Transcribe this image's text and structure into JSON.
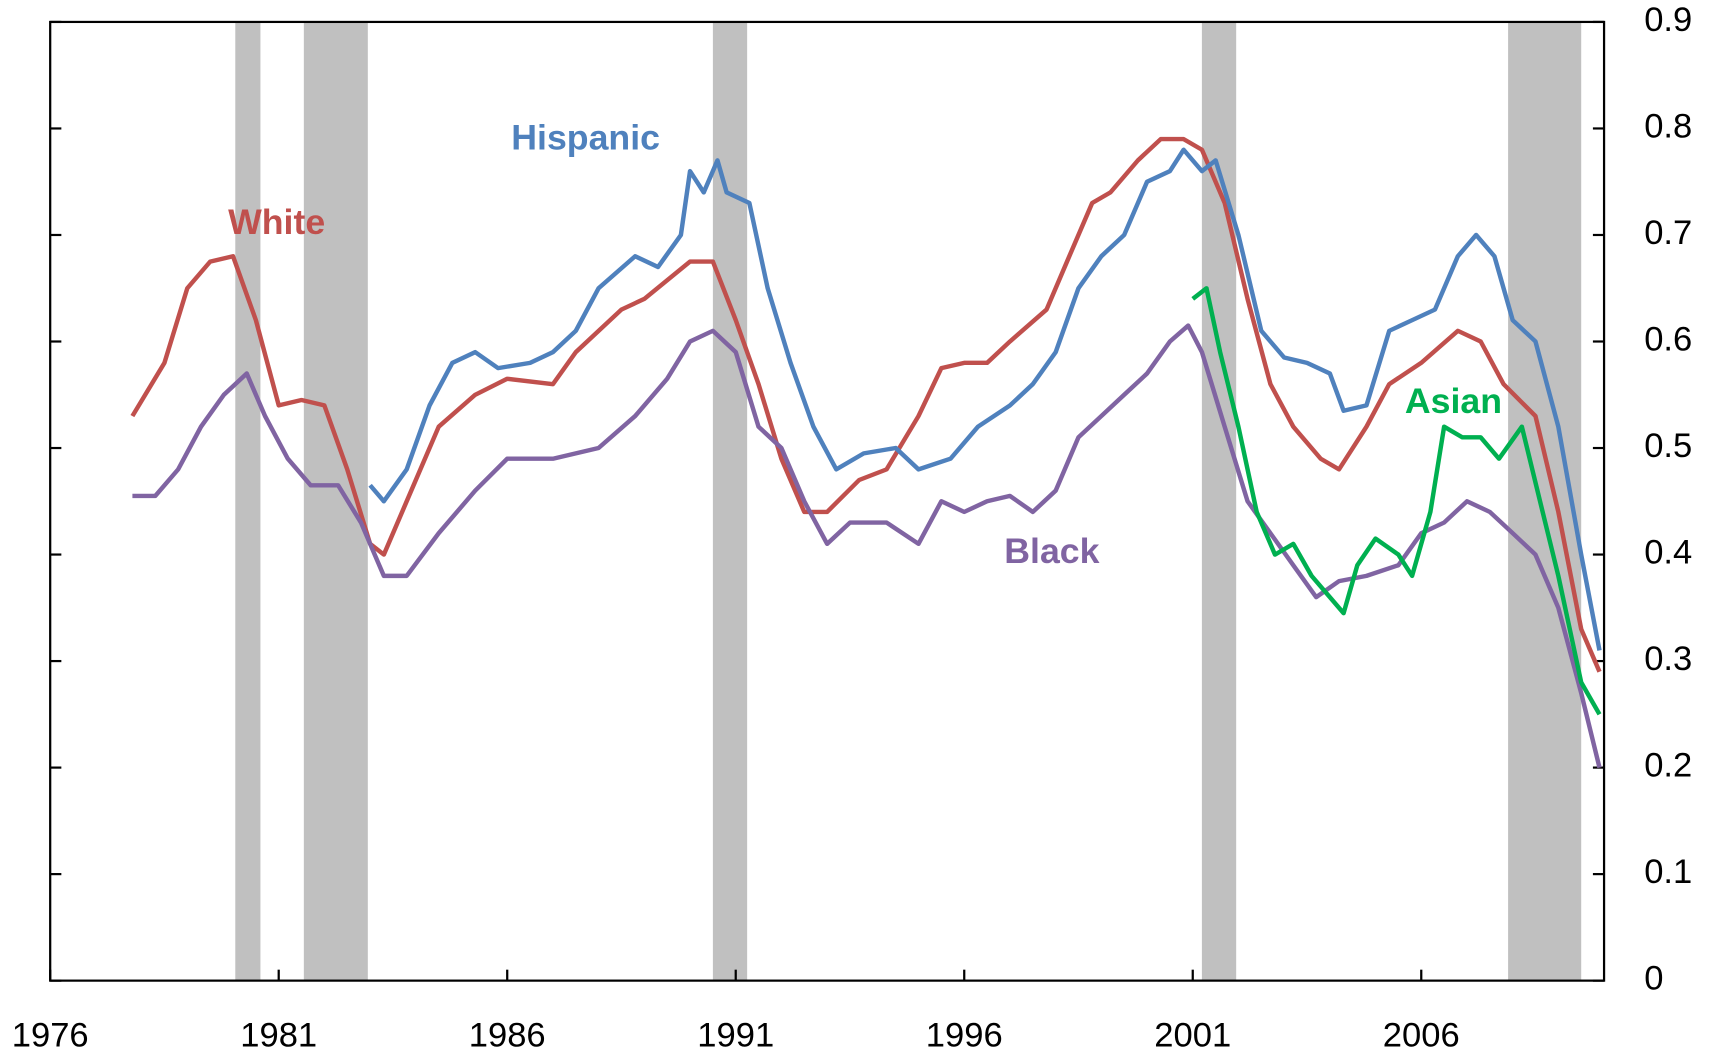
{
  "chart_data": {
    "type": "line",
    "xlim": [
      1976,
      2010
    ],
    "xticks": [
      1976,
      1981,
      1986,
      1991,
      1996,
      2001,
      2006
    ],
    "ylim": [
      0,
      0.9
    ],
    "yticks": [
      0,
      0.1,
      0.2,
      0.3,
      0.4,
      0.5,
      0.6,
      0.7,
      0.8,
      0.9
    ],
    "recessions": [
      [
        1980.05,
        1980.6
      ],
      [
        1981.55,
        1982.95
      ],
      [
        1990.5,
        1991.25
      ],
      [
        2001.2,
        2001.95
      ],
      [
        2007.9,
        2009.5
      ]
    ],
    "series": [
      {
        "name": "White",
        "color": "#c0504d",
        "x": [
          1977.8,
          1978.5,
          1979.0,
          1979.5,
          1980.0,
          1980.5,
          1981.0,
          1981.5,
          1982.0,
          1982.5,
          1983.0,
          1983.3,
          1983.8,
          1984.5,
          1985.3,
          1986.0,
          1987.0,
          1987.5,
          1988.5,
          1989.0,
          1990.0,
          1990.5,
          1991.0,
          1991.5,
          1992.0,
          1992.5,
          1993.0,
          1993.7,
          1994.3,
          1995.0,
          1995.5,
          1996.0,
          1996.5,
          1997.0,
          1997.8,
          1998.3,
          1998.8,
          1999.2,
          1999.8,
          2000.3,
          2000.8,
          2001.2,
          2001.7,
          2002.2,
          2002.7,
          2003.2,
          2003.8,
          2004.2,
          2004.8,
          2005.3,
          2006.0,
          2006.8,
          2007.3,
          2007.8,
          2008.5,
          2009.0,
          2009.5,
          2009.9
        ],
        "values": [
          0.53,
          0.58,
          0.65,
          0.675,
          0.68,
          0.62,
          0.54,
          0.545,
          0.54,
          0.48,
          0.41,
          0.4,
          0.45,
          0.52,
          0.55,
          0.565,
          0.56,
          0.59,
          0.63,
          0.64,
          0.675,
          0.675,
          0.62,
          0.56,
          0.49,
          0.44,
          0.44,
          0.47,
          0.48,
          0.53,
          0.575,
          0.58,
          0.58,
          0.6,
          0.63,
          0.68,
          0.73,
          0.74,
          0.77,
          0.79,
          0.79,
          0.78,
          0.73,
          0.64,
          0.56,
          0.52,
          0.49,
          0.48,
          0.52,
          0.56,
          0.58,
          0.61,
          0.6,
          0.56,
          0.53,
          0.44,
          0.33,
          0.29
        ]
      },
      {
        "name": "Hispanic",
        "color": "#4f81bd",
        "x": [
          1983.0,
          1983.3,
          1983.8,
          1984.3,
          1984.8,
          1985.3,
          1985.8,
          1986.5,
          1987.0,
          1987.5,
          1988.0,
          1988.8,
          1989.3,
          1989.8,
          1990.0,
          1990.3,
          1990.6,
          1990.8,
          1991.3,
          1991.7,
          1992.2,
          1992.7,
          1993.2,
          1993.8,
          1994.5,
          1995.0,
          1995.7,
          1996.3,
          1997.0,
          1997.5,
          1998.0,
          1998.5,
          1999.0,
          1999.5,
          2000.0,
          2000.5,
          2000.8,
          2001.2,
          2001.5,
          2002.0,
          2002.5,
          2003.0,
          2003.5,
          2004.0,
          2004.3,
          2004.8,
          2005.3,
          2005.8,
          2006.3,
          2006.8,
          2007.2,
          2007.6,
          2008.0,
          2008.5,
          2009.0,
          2009.5,
          2009.9
        ],
        "values": [
          0.465,
          0.45,
          0.48,
          0.54,
          0.58,
          0.59,
          0.575,
          0.58,
          0.59,
          0.61,
          0.65,
          0.68,
          0.67,
          0.7,
          0.76,
          0.74,
          0.77,
          0.74,
          0.73,
          0.65,
          0.58,
          0.52,
          0.48,
          0.495,
          0.5,
          0.48,
          0.49,
          0.52,
          0.54,
          0.56,
          0.59,
          0.65,
          0.68,
          0.7,
          0.75,
          0.76,
          0.78,
          0.76,
          0.77,
          0.7,
          0.61,
          0.585,
          0.58,
          0.57,
          0.535,
          0.54,
          0.61,
          0.62,
          0.63,
          0.68,
          0.7,
          0.68,
          0.62,
          0.6,
          0.52,
          0.4,
          0.31
        ]
      },
      {
        "name": "Black",
        "color": "#8064a2",
        "x": [
          1977.8,
          1978.3,
          1978.8,
          1979.3,
          1979.8,
          1980.3,
          1980.7,
          1981.2,
          1981.7,
          1982.3,
          1982.8,
          1983.3,
          1983.8,
          1984.5,
          1985.3,
          1986.0,
          1987.0,
          1988.0,
          1988.8,
          1989.5,
          1990.0,
          1990.5,
          1991.0,
          1991.5,
          1992.0,
          1992.5,
          1993.0,
          1993.5,
          1994.3,
          1995.0,
          1995.5,
          1996.0,
          1996.5,
          1997.0,
          1997.5,
          1998.0,
          1998.5,
          1999.0,
          1999.5,
          2000.0,
          2000.5,
          2000.9,
          2001.2,
          2001.7,
          2002.2,
          2002.7,
          2003.2,
          2003.7,
          2004.2,
          2004.8,
          2005.5,
          2006.0,
          2006.5,
          2007.0,
          2007.5,
          2008.0,
          2008.5,
          2009.0,
          2009.5,
          2009.9
        ],
        "values": [
          0.455,
          0.455,
          0.48,
          0.52,
          0.55,
          0.57,
          0.53,
          0.49,
          0.465,
          0.465,
          0.43,
          0.38,
          0.38,
          0.42,
          0.46,
          0.49,
          0.49,
          0.5,
          0.53,
          0.565,
          0.6,
          0.61,
          0.59,
          0.52,
          0.5,
          0.45,
          0.41,
          0.43,
          0.43,
          0.41,
          0.45,
          0.44,
          0.45,
          0.455,
          0.44,
          0.46,
          0.51,
          0.53,
          0.55,
          0.57,
          0.6,
          0.615,
          0.59,
          0.52,
          0.45,
          0.42,
          0.39,
          0.36,
          0.375,
          0.38,
          0.39,
          0.42,
          0.43,
          0.45,
          0.44,
          0.42,
          0.4,
          0.35,
          0.27,
          0.2
        ]
      },
      {
        "name": "Asian",
        "color": "#00b050",
        "x": [
          2001.0,
          2001.3,
          2001.6,
          2002.0,
          2002.4,
          2002.8,
          2003.2,
          2003.6,
          2004.0,
          2004.3,
          2004.6,
          2005.0,
          2005.5,
          2005.8,
          2006.2,
          2006.5,
          2006.9,
          2007.3,
          2007.7,
          2008.2,
          2008.6,
          2009.0,
          2009.5,
          2009.9
        ],
        "values": [
          0.64,
          0.65,
          0.59,
          0.52,
          0.44,
          0.4,
          0.41,
          0.38,
          0.36,
          0.345,
          0.39,
          0.415,
          0.4,
          0.38,
          0.44,
          0.52,
          0.51,
          0.51,
          0.49,
          0.52,
          0.45,
          0.38,
          0.28,
          0.25
        ]
      }
    ]
  }
}
